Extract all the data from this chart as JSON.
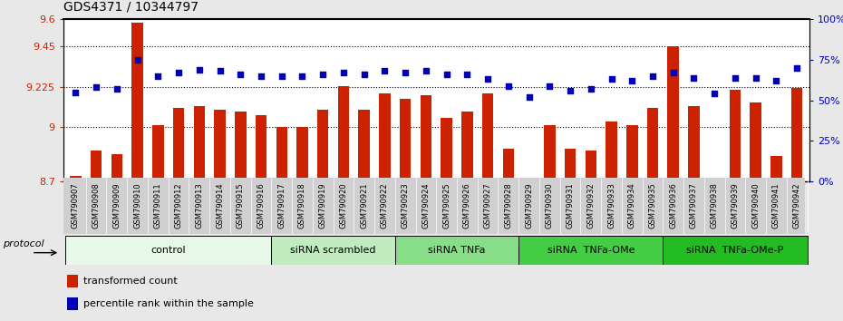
{
  "title": "GDS4371 / 10344797",
  "samples": [
    "GSM790907",
    "GSM790908",
    "GSM790909",
    "GSM790910",
    "GSM790911",
    "GSM790912",
    "GSM790913",
    "GSM790914",
    "GSM790915",
    "GSM790916",
    "GSM790917",
    "GSM790918",
    "GSM790919",
    "GSM790920",
    "GSM790921",
    "GSM790922",
    "GSM790923",
    "GSM790924",
    "GSM790925",
    "GSM790926",
    "GSM790927",
    "GSM790928",
    "GSM790929",
    "GSM790930",
    "GSM790931",
    "GSM790932",
    "GSM790933",
    "GSM790934",
    "GSM790935",
    "GSM790936",
    "GSM790937",
    "GSM790938",
    "GSM790939",
    "GSM790940",
    "GSM790941",
    "GSM790942"
  ],
  "bar_values": [
    8.73,
    8.87,
    8.85,
    9.58,
    9.01,
    9.11,
    9.12,
    9.1,
    9.09,
    9.07,
    9.0,
    9.0,
    9.1,
    9.23,
    9.1,
    9.19,
    9.16,
    9.18,
    9.05,
    9.09,
    9.19,
    8.88,
    8.72,
    9.01,
    8.88,
    8.87,
    9.03,
    9.01,
    9.11,
    9.45,
    9.12,
    8.72,
    9.21,
    9.14,
    8.84,
    9.22
  ],
  "percentile_values": [
    55,
    58,
    57,
    75,
    65,
    67,
    69,
    68,
    66,
    65,
    65,
    65,
    66,
    67,
    66,
    68,
    67,
    68,
    66,
    66,
    63,
    59,
    52,
    59,
    56,
    57,
    63,
    62,
    65,
    67,
    64,
    54,
    64,
    64,
    62,
    70
  ],
  "ylim_left": [
    8.7,
    9.6
  ],
  "ylim_right": [
    0,
    100
  ],
  "yticks_left": [
    8.7,
    9.0,
    9.225,
    9.45,
    9.6
  ],
  "ytick_labels_left": [
    "8.7",
    "9",
    "9.225",
    "9.45",
    "9.6"
  ],
  "yticks_right": [
    0,
    25,
    50,
    75,
    100
  ],
  "ytick_labels_right": [
    "0%",
    "25%",
    "50%",
    "75%",
    "100%"
  ],
  "bar_color": "#cc2200",
  "dot_color": "#0000bb",
  "groups": [
    {
      "label": "control",
      "start": 0,
      "end": 10,
      "color": "#e8f8e8"
    },
    {
      "label": "siRNA scrambled",
      "start": 10,
      "end": 16,
      "color": "#c0ecc0"
    },
    {
      "label": "siRNA TNFa",
      "start": 16,
      "end": 22,
      "color": "#88dd88"
    },
    {
      "label": "siRNA  TNFa-OMe",
      "start": 22,
      "end": 29,
      "color": "#44cc44"
    },
    {
      "label": "siRNA  TNFa-OMe-P",
      "start": 29,
      "end": 36,
      "color": "#22bb22"
    }
  ],
  "legend_label_count": "transformed count",
  "legend_label_pct": "percentile rank within the sample",
  "protocol_label": "protocol",
  "background_color": "#e8e8e8",
  "plot_bg_color": "#ffffff",
  "dotted_lines": [
    9.0,
    9.225,
    9.45
  ],
  "xtick_area_color": "#d0d0d0"
}
